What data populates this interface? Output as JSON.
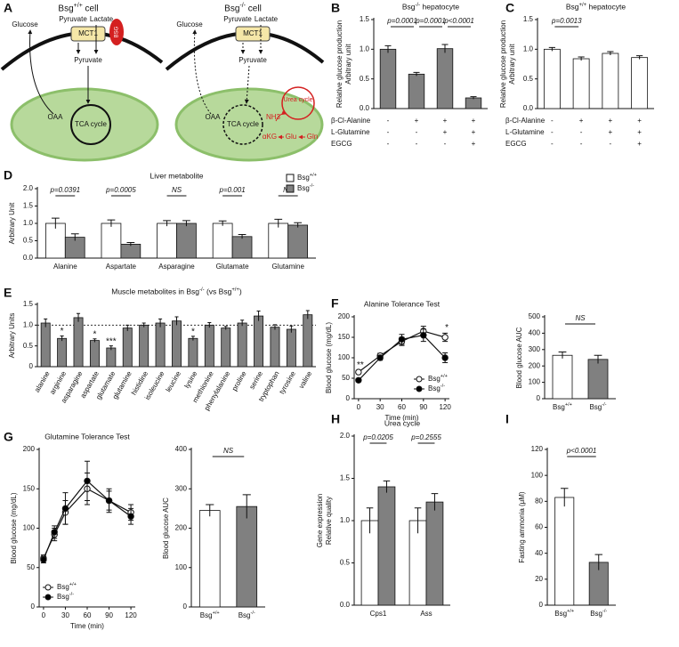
{
  "diagram": {
    "label": "A",
    "left": {
      "title": "Bsg+/+ cell",
      "glucose": "Glucose",
      "pyruvate_in": "Pyruvate",
      "lactate": "Lactate",
      "transporter": "MCT1",
      "chaperone": "BSG",
      "pyruvate_out": "Pyruvate",
      "oaa": "OAA",
      "cycle": "TCA cycle"
    },
    "right": {
      "title": "Bsg-/- cell",
      "glucose": "Glucose",
      "pyruvate_in": "Pyruvate",
      "lactate": "Lactate",
      "transporter": "MCT1",
      "pyruvate_out": "Pyruvate",
      "oaa": "OAA",
      "cycle": "TCA cycle",
      "urea": "Urea cycle",
      "nh3": "NH3",
      "akg": "αKG",
      "glu": "Glu",
      "gln": "Gln"
    }
  },
  "chart_data": [
    {
      "label": "B",
      "type": "bar",
      "title": "Bsg-/- hepatocyte",
      "ylabel": [
        "Relative glucose production",
        "Arbitrary unit"
      ],
      "series": [
        {
          "color": "#808080",
          "values": [
            1.0,
            0.58,
            1.01,
            0.18
          ],
          "errors": [
            0.06,
            0.03,
            0.07,
            0.02
          ]
        }
      ],
      "conditions": [
        {
          "name": "β-Cl-Alanine",
          "values": [
            "-",
            "+",
            "+",
            "+"
          ]
        },
        {
          "name": "L-Glutamine",
          "values": [
            "-",
            "-",
            "+",
            "+"
          ]
        },
        {
          "name": "EGCG",
          "values": [
            "-",
            "-",
            "-",
            "+"
          ]
        }
      ],
      "comparisons": [
        "p=0.0001",
        "p=0.0001",
        "p<0.0001"
      ],
      "ylim": [
        0,
        1.5
      ],
      "yticks": [
        {
          "value": 0,
          "label": "0.0"
        },
        0.5,
        {
          "value": 1,
          "label": "1.0"
        },
        1.5
      ]
    },
    {
      "label": "C",
      "type": "bar",
      "title": "Bsg+/+ hepatocyte",
      "ylabel": [
        "Relative glucose production",
        "Arbitrary unit"
      ],
      "series": [
        {
          "color": "#ffffff",
          "values": [
            1.0,
            0.84,
            0.93,
            0.86
          ],
          "errors": [
            0.03,
            0.03,
            0.03,
            0.03
          ]
        }
      ],
      "conditions": [
        {
          "name": "β-Cl-Alanine",
          "values": [
            "-",
            "+",
            "+",
            "+"
          ]
        },
        {
          "name": "L-Glutamine",
          "values": [
            "-",
            "-",
            "+",
            "+"
          ]
        },
        {
          "name": "EGCG",
          "values": [
            "-",
            "-",
            "-",
            "+"
          ]
        }
      ],
      "comparisons": [
        "p=0.0013",
        null,
        null
      ],
      "ylim": [
        0,
        1.5
      ],
      "yticks": [
        {
          "value": 0,
          "label": "0.0"
        },
        0.5,
        {
          "value": 1,
          "label": "1.0"
        },
        1.5
      ]
    },
    {
      "label": "D",
      "type": "bar",
      "title": "Liver metabolite",
      "ylabel": [
        "Arbitrary Unit"
      ],
      "categories": [
        "Alanine",
        "Aspartate",
        "Asparagine",
        "Glutamate",
        "Glutamine"
      ],
      "series": [
        {
          "name": "Bsg+/+",
          "color": "#ffffff",
          "values": [
            1.0,
            1.0,
            1.0,
            1.0,
            1.0
          ],
          "errors": [
            0.15,
            0.1,
            0.08,
            0.07,
            0.12
          ]
        },
        {
          "name": "Bsg-/-",
          "color": "#808080",
          "values": [
            0.6,
            0.4,
            1.0,
            0.62,
            0.95
          ],
          "errors": [
            0.1,
            0.05,
            0.08,
            0.06,
            0.07
          ]
        }
      ],
      "pvalues": [
        "p=0.0391",
        "p=0.0005",
        "NS",
        "p=0.001",
        "NS"
      ],
      "legend": "upper right",
      "ylim": [
        0,
        2
      ],
      "yticks": [
        {
          "value": 0,
          "label": "0.0"
        },
        0.5,
        {
          "value": 1,
          "label": "1.0"
        },
        1.5,
        {
          "value": 2,
          "label": "2.0"
        }
      ]
    },
    {
      "label": "E",
      "type": "bar",
      "title": "Muscle metabolites in Bsg-/- (vs Bsg+/+)",
      "ylabel": [
        "Arbitrary Units"
      ],
      "categories": [
        "alanine",
        "arginine",
        "asparagine",
        "aspartate",
        "glutamate",
        "glutamine",
        "histidine",
        "isoleucine",
        "leucine",
        "lysine",
        "methionine",
        "phenylalanine",
        "proline",
        "serine",
        "tryptophan",
        "tyrosine",
        "valine"
      ],
      "series": [
        {
          "color": "#808080",
          "values": [
            1.05,
            0.68,
            1.18,
            0.63,
            0.45,
            0.93,
            1.0,
            1.05,
            1.1,
            0.68,
            1.0,
            0.93,
            1.05,
            1.22,
            0.95,
            0.9,
            1.25
          ],
          "errors": [
            0.1,
            0.06,
            0.1,
            0.04,
            0.05,
            0.07,
            0.05,
            0.1,
            0.1,
            0.05,
            0.06,
            0.04,
            0.07,
            0.12,
            0.06,
            0.08,
            0.1
          ]
        }
      ],
      "stars": [
        null,
        "*",
        null,
        "*",
        "***",
        null,
        null,
        null,
        null,
        "*",
        null,
        null,
        null,
        null,
        null,
        null,
        null
      ],
      "reference_line": 1,
      "ylim": [
        0,
        1.5
      ],
      "yticks": [
        0,
        0.5,
        {
          "value": 1,
          "label": "1.0"
        },
        1.5
      ]
    },
    {
      "label": "F",
      "type": "line",
      "title": "Alanine Tolerance Test",
      "xlabel": "Time (min)",
      "ylabel": [
        "Blood glucose (mg/dL)"
      ],
      "x": [
        0,
        30,
        60,
        90,
        120
      ],
      "series": [
        {
          "name": "Bsg+/+",
          "color": "#ffffff",
          "values": [
            65,
            105,
            140,
            165,
            150
          ],
          "errors": [
            4,
            6,
            10,
            12,
            10
          ]
        },
        {
          "name": "Bsg-/-",
          "color": "#000000",
          "values": [
            45,
            100,
            145,
            155,
            100
          ],
          "errors": [
            4,
            6,
            12,
            15,
            12
          ]
        }
      ],
      "stars": [
        "**",
        null,
        null,
        null,
        "*"
      ],
      "legend": "lower right",
      "xlim": [
        -6,
        126
      ],
      "xticks": [
        0,
        30,
        60,
        90,
        120
      ],
      "ylim": [
        0,
        200
      ],
      "yticks": [
        0,
        50,
        100,
        150,
        200
      ]
    },
    {
      "type": "bar",
      "ylabel": [
        "Blood glucose AUC"
      ],
      "categories": [
        "Bsg+/+",
        "Bsg-/-"
      ],
      "series": [
        {
          "colors": [
            "#ffffff",
            "#808080"
          ],
          "values": [
            265,
            240
          ],
          "errors": [
            20,
            25
          ]
        }
      ],
      "comparisons": [
        "NS"
      ],
      "ylim": [
        0,
        500
      ],
      "yticks": [
        0,
        100,
        200,
        300,
        400,
        500
      ]
    },
    {
      "label": "G",
      "type": "line",
      "title": "Glutamine Tolerance Test",
      "xlabel": "Time (min)",
      "ylabel": [
        "Blood glucose (mg/dL)"
      ],
      "x": [
        0,
        15,
        30,
        60,
        90,
        120
      ],
      "series": [
        {
          "name": "Bsg+/+",
          "color": "#ffffff",
          "values": [
            62,
            92,
            120,
            150,
            135,
            120
          ],
          "errors": [
            4,
            8,
            15,
            20,
            12,
            10
          ]
        },
        {
          "name": "Bsg-/-",
          "color": "#000000",
          "values": [
            60,
            95,
            125,
            160,
            135,
            115
          ],
          "errors": [
            4,
            8,
            20,
            25,
            15,
            10
          ]
        }
      ],
      "legend": "lower left",
      "xlim": [
        -6,
        126
      ],
      "xticks": [
        0,
        30,
        60,
        90,
        120
      ],
      "ylim": [
        0,
        200
      ],
      "yticks": [
        0,
        50,
        100,
        150,
        200
      ]
    },
    {
      "type": "bar",
      "ylabel": [
        "Blood glucose AUC"
      ],
      "categories": [
        "Bsg+/+",
        "Bsg-/-"
      ],
      "series": [
        {
          "colors": [
            "#ffffff",
            "#808080"
          ],
          "values": [
            245,
            255
          ],
          "errors": [
            15,
            30
          ]
        }
      ],
      "comparisons": [
        "NS"
      ],
      "ylim": [
        0,
        400
      ],
      "yticks": [
        0,
        100,
        200,
        300,
        400
      ]
    },
    {
      "label": "H",
      "type": "bar",
      "title": "Urea cycle",
      "ylabel": [
        "Gene expression",
        "Relative quality"
      ],
      "categories": [
        "Cps1",
        "Ass"
      ],
      "series": [
        {
          "name": "Bsg+/+",
          "color": "#ffffff",
          "values": [
            1.0,
            1.0
          ],
          "errors": [
            0.15,
            0.15
          ]
        },
        {
          "name": "Bsg-/-",
          "color": "#808080",
          "values": [
            1.4,
            1.22
          ],
          "errors": [
            0.07,
            0.1
          ]
        }
      ],
      "pvalues": [
        "p=0.0205",
        "p=0.2555"
      ],
      "ylim": [
        0,
        2
      ],
      "yticks": [
        {
          "value": 0,
          "label": "0.0"
        },
        0.5,
        {
          "value": 1,
          "label": "1.0"
        },
        1.5,
        {
          "value": 2,
          "label": "2.0"
        }
      ]
    },
    {
      "label": "I",
      "type": "bar",
      "ylabel": [
        "Fasting ammonia (μM)"
      ],
      "categories": [
        "Bsg+/+",
        "Bsg-/-"
      ],
      "series": [
        {
          "colors": [
            "#ffffff",
            "#808080"
          ],
          "values": [
            83,
            33
          ],
          "errors": [
            7,
            6
          ]
        }
      ],
      "comparisons": [
        "p<0.0001"
      ],
      "ylim": [
        0,
        120
      ],
      "yticks": [
        0,
        20,
        40,
        60,
        80,
        100,
        120
      ]
    }
  ]
}
